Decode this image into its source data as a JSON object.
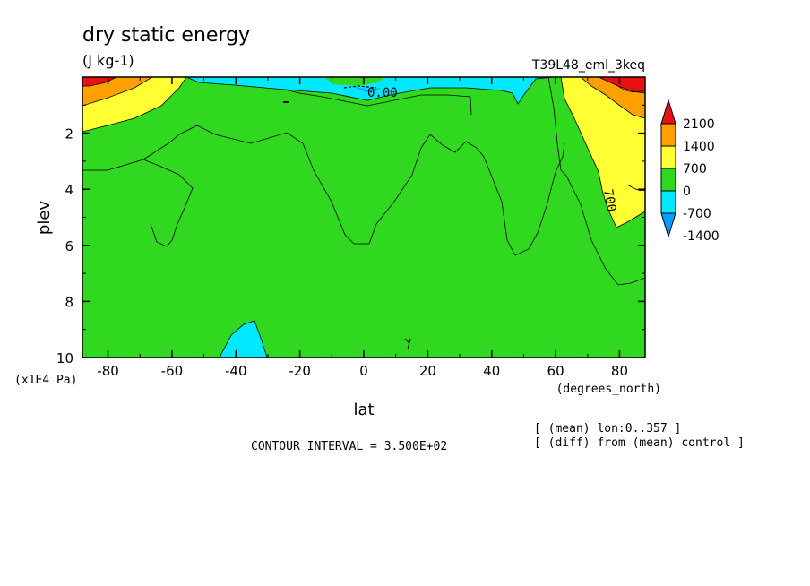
{
  "chart_data": {
    "type": "heatmap",
    "title": "dry static energy",
    "units": "(J kg-1)",
    "run_label": "T39L48_eml_3keq",
    "xlabel": "lat",
    "x_units": "(degrees_north)",
    "ylabel": "plev",
    "y_units": "(x1E4 Pa)",
    "xlim": [
      -88,
      88
    ],
    "ylim": [
      10,
      0
    ],
    "x_ticks": [
      -80,
      -60,
      -40,
      -20,
      0,
      20,
      40,
      60,
      80
    ],
    "x_tick_labels": [
      "-80",
      "-60",
      "-40",
      "-20",
      "0",
      "20",
      "40",
      "60",
      "80"
    ],
    "y_ticks": [
      2,
      4,
      6,
      8,
      10
    ],
    "y_tick_labels": [
      "2",
      "4",
      "6",
      "8",
      "10"
    ],
    "contour_interval_text": "CONTOUR INTERVAL = 3.500E+02",
    "notes": [
      "[ (mean) lon:0..357 ]",
      "[ (diff) from (mean) control ]"
    ],
    "contour_labels": [
      {
        "text": "0.00",
        "lat": 10,
        "plev": 0.5
      },
      {
        "text": "700",
        "lat": 78,
        "plev": 4.5
      }
    ],
    "colorbar": {
      "levels": [
        -1400,
        -700,
        0,
        700,
        1400,
        2100
      ],
      "labels": [
        "-1400",
        "-700",
        "0",
        "700",
        "1400",
        "2100"
      ],
      "colors": [
        "#00a0ff",
        "#00e8ff",
        "#30d820",
        "#ffff33",
        "#ffa000",
        "#e81010"
      ],
      "extend": "both"
    },
    "colors": {
      "background_field": "#30d820",
      "neg1": "#00e8ff",
      "neg2": "#00a0ff",
      "pos1": "#ffff33",
      "pos2": "#ffa000",
      "pos3": "#e81010"
    }
  }
}
